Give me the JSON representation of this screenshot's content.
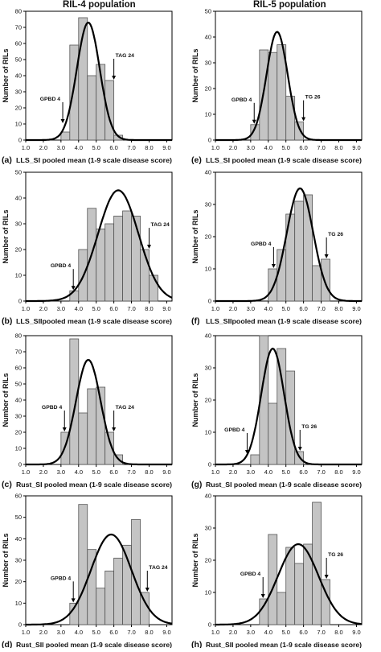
{
  "column_titles": [
    "RIL-4 population",
    "RIL-5 population"
  ],
  "colors": {
    "bar_fill": "#c4c4c4",
    "bar_stroke": "#555555",
    "curve": "#000000",
    "axis": "#000000"
  },
  "chart_data": [
    {
      "type": "bar",
      "panel_letter": "(a)",
      "xlabel": "LLS_SI pooled mean (1-9 scale disease score)",
      "ylabel": "Number of RILs",
      "xticks": [
        "1.0",
        "2.0",
        "3.0",
        "4.0",
        "5.0",
        "6.0",
        "7.0",
        "8.0",
        "9.0"
      ],
      "xlim": [
        1,
        9.3
      ],
      "ylim": [
        0,
        80
      ],
      "yticks": [
        0,
        10,
        20,
        30,
        40,
        50,
        60,
        70,
        80
      ],
      "bin_edges": [
        3.0,
        3.5,
        4.0,
        4.5,
        5.0,
        5.5,
        6.0,
        6.5
      ],
      "values": [
        5,
        59,
        76,
        40,
        47,
        37,
        3
      ],
      "normal_curve": {
        "mean": 4.55,
        "sd": 0.65,
        "peak": 73
      },
      "annotations": [
        {
          "label": "GPBD 4",
          "x": 3.1,
          "y": 10,
          "side": "left"
        },
        {
          "label": "TAG 24",
          "x": 6.0,
          "y": 37,
          "side": "right"
        }
      ]
    },
    {
      "type": "bar",
      "panel_letter": "(e)",
      "xlabel": "LLS_SI pooled mean (1-9 scale disease score)",
      "ylabel": "Number of RILs",
      "xticks": [
        "1.0",
        "2.0",
        "3.0",
        "4.0",
        "5.0",
        "6.0",
        "7.0",
        "8.0",
        "9.0"
      ],
      "xlim": [
        1,
        9.3
      ],
      "ylim": [
        0,
        50
      ],
      "yticks": [
        0,
        10,
        20,
        30,
        40,
        50
      ],
      "bin_edges": [
        3.0,
        3.5,
        4.0,
        4.5,
        5.0,
        5.5,
        6.0
      ],
      "values": [
        6,
        35,
        34,
        37,
        17,
        7
      ],
      "normal_curve": {
        "mean": 4.5,
        "sd": 0.6,
        "peak": 42
      },
      "annotations": [
        {
          "label": "GPBD 4",
          "x": 3.2,
          "y": 6,
          "side": "left"
        },
        {
          "label": "TG 26",
          "x": 6.0,
          "y": 7,
          "side": "right"
        }
      ]
    },
    {
      "type": "bar",
      "panel_letter": "(b)",
      "xlabel": "LLS_SIIpooled mean (1-9 scale disease score)",
      "ylabel": "Number of RILs",
      "xticks": [
        "1.0",
        "2.0",
        "3.0",
        "4.0",
        "5.0",
        "6.0",
        "7.0",
        "8.0",
        "9.0"
      ],
      "xlim": [
        1,
        9.3
      ],
      "ylim": [
        0,
        50
      ],
      "yticks": [
        0,
        10,
        20,
        30,
        40,
        50
      ],
      "bin_edges": [
        3.5,
        4.0,
        4.5,
        5.0,
        5.5,
        6.0,
        6.5,
        7.0,
        7.5,
        8.0,
        8.5
      ],
      "values": [
        4,
        20,
        36,
        28,
        30,
        33,
        35,
        33,
        20,
        10
      ],
      "normal_curve": {
        "mean": 6.25,
        "sd": 1.15,
        "peak": 43
      },
      "annotations": [
        {
          "label": "GPBD 4",
          "x": 3.7,
          "y": 4,
          "side": "left"
        },
        {
          "label": "TAG 24",
          "x": 8.0,
          "y": 20,
          "side": "right"
        }
      ]
    },
    {
      "type": "bar",
      "panel_letter": "(f)",
      "xlabel": "LLS_SIIpooled mean (1-9 scale disease score)",
      "ylabel": "Number of RILs",
      "xticks": [
        "1.0",
        "2.0",
        "3.0",
        "4.0",
        "5.0",
        "6.0",
        "7.0",
        "8.0",
        "9.0"
      ],
      "xlim": [
        1,
        9.3
      ],
      "ylim": [
        0,
        40
      ],
      "yticks": [
        0,
        10,
        20,
        30,
        40
      ],
      "bin_edges": [
        4.0,
        4.5,
        5.0,
        5.5,
        6.0,
        6.5,
        7.0,
        7.5
      ],
      "values": [
        10,
        16,
        27,
        31,
        33,
        11,
        13
      ],
      "normal_curve": {
        "mean": 5.8,
        "sd": 0.75,
        "peak": 35
      },
      "annotations": [
        {
          "label": "GPBD 4",
          "x": 4.3,
          "y": 10,
          "side": "left"
        },
        {
          "label": "TG 26",
          "x": 7.3,
          "y": 13,
          "side": "right"
        }
      ]
    },
    {
      "type": "bar",
      "panel_letter": "(c)",
      "xlabel": "Rust_SI  pooled mean (1-9 scale disease score)",
      "ylabel": "Number of RILs",
      "xticks": [
        "1.0",
        "2.0",
        "3.0",
        "4.0",
        "5.0",
        "6.0",
        "7.0",
        "8.0",
        "9.0"
      ],
      "xlim": [
        1,
        9.3
      ],
      "ylim": [
        0,
        80
      ],
      "yticks": [
        0,
        10,
        20,
        30,
        40,
        50,
        60,
        70,
        80
      ],
      "bin_edges": [
        3.0,
        3.5,
        4.0,
        4.5,
        5.0,
        5.5,
        6.0,
        6.5
      ],
      "values": [
        20,
        78,
        32,
        47,
        48,
        20,
        6
      ],
      "normal_curve": {
        "mean": 4.55,
        "sd": 0.7,
        "peak": 65
      },
      "annotations": [
        {
          "label": "GPBD 4",
          "x": 3.2,
          "y": 20,
          "side": "left"
        },
        {
          "label": "TAG 24",
          "x": 6.0,
          "y": 20,
          "side": "right"
        }
      ]
    },
    {
      "type": "bar",
      "panel_letter": "(g)",
      "xlabel": "Rust_SI  pooled mean (1-9 scale disease score)",
      "ylabel": "Number of RILs",
      "xticks": [
        "1.0",
        "2.0",
        "3.0",
        "4.0",
        "5.0",
        "6.0",
        "7.0",
        "8.0",
        "9.0"
      ],
      "xlim": [
        1,
        9.3
      ],
      "ylim": [
        0,
        40
      ],
      "yticks": [
        0,
        10,
        20,
        30,
        40
      ],
      "bin_edges": [
        3.0,
        3.5,
        4.0,
        4.5,
        5.0,
        5.5,
        6.0
      ],
      "values": [
        3,
        40,
        19,
        36,
        29,
        4
      ],
      "normal_curve": {
        "mean": 4.25,
        "sd": 0.65,
        "peak": 36
      },
      "annotations": [
        {
          "label": "GPBD 4",
          "x": 2.8,
          "y": 3,
          "side": "left"
        },
        {
          "label": "TG 26",
          "x": 5.8,
          "y": 4,
          "side": "right"
        }
      ]
    },
    {
      "type": "bar",
      "panel_letter": "(d)",
      "xlabel": "Rust_SII pooled mean (1-9 scale disease score)",
      "ylabel": "Number of RILs",
      "xticks": [
        "1.0",
        "2.0",
        "3.0",
        "4.0",
        "5.0",
        "6.0",
        "7.0",
        "8.0",
        "9.0"
      ],
      "xlim": [
        1,
        9.3
      ],
      "ylim": [
        0,
        60
      ],
      "yticks": [
        0,
        10,
        20,
        30,
        40,
        50,
        60
      ],
      "bin_edges": [
        3.5,
        4.0,
        4.5,
        5.0,
        5.5,
        6.0,
        6.5,
        7.0,
        7.5,
        8.0
      ],
      "values": [
        10,
        56,
        35,
        17,
        25,
        31,
        37,
        49,
        15
      ],
      "normal_curve": {
        "mean": 5.85,
        "sd": 1.15,
        "peak": 42
      },
      "annotations": [
        {
          "label": "GPBD 4",
          "x": 3.7,
          "y": 10,
          "side": "left"
        },
        {
          "label": "TAG 24",
          "x": 7.9,
          "y": 15,
          "side": "right"
        }
      ]
    },
    {
      "type": "bar",
      "panel_letter": "(h)",
      "xlabel": "Rust_SII pooled mean (1-9 scale disease score)",
      "ylabel": "Number of RILs",
      "xticks": [
        "1.0",
        "2.0",
        "3.0",
        "4.0",
        "5.0",
        "6.0",
        "7.0",
        "8.0",
        "9.0"
      ],
      "xlim": [
        1,
        9.3
      ],
      "ylim": [
        0,
        40
      ],
      "yticks": [
        0,
        10,
        20,
        30,
        40
      ],
      "bin_edges": [
        3.5,
        4.0,
        4.5,
        5.0,
        5.5,
        6.0,
        6.5,
        7.0,
        7.5
      ],
      "values": [
        8,
        28,
        10,
        24,
        19,
        25,
        38,
        14
      ],
      "normal_curve": {
        "mean": 5.7,
        "sd": 1.15,
        "peak": 25
      },
      "annotations": [
        {
          "label": "GPBD 4",
          "x": 3.7,
          "y": 8,
          "side": "left"
        },
        {
          "label": "TG 26",
          "x": 7.3,
          "y": 14,
          "side": "right"
        }
      ]
    }
  ]
}
